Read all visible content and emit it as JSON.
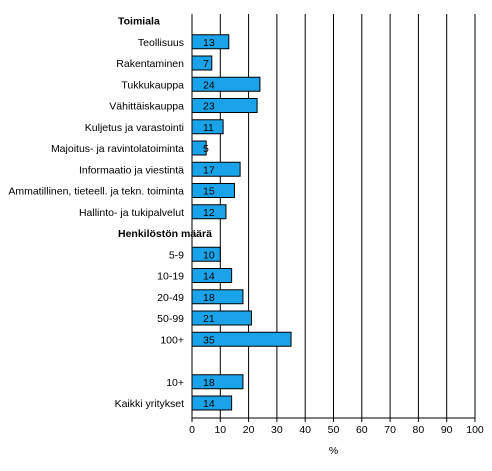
{
  "chart_data": {
    "type": "bar",
    "orientation": "horizontal",
    "xlabel": "%",
    "xlim": [
      0,
      100
    ],
    "xticks": [
      "0",
      "10",
      "20",
      "30",
      "40",
      "50",
      "60",
      "70",
      "80",
      "90",
      "100"
    ],
    "grid": "vertical lines",
    "bar_color": "#1aa3e8",
    "sections": [
      "Toimiala",
      "Henkilöstön määrä"
    ],
    "rows": [
      {
        "kind": "header",
        "label": "Toimiala"
      },
      {
        "kind": "bar",
        "label": "Teollisuus",
        "value": 13
      },
      {
        "kind": "bar",
        "label": "Rakentaminen",
        "value": 7
      },
      {
        "kind": "bar",
        "label": "Tukkukauppa",
        "value": 24
      },
      {
        "kind": "bar",
        "label": "Vähittäiskauppa",
        "value": 23
      },
      {
        "kind": "bar",
        "label": "Kuljetus ja varastointi",
        "value": 11
      },
      {
        "kind": "bar",
        "label": "Majoitus- ja ravintolatoiminta",
        "value": 5
      },
      {
        "kind": "bar",
        "label": "Informaatio ja viestintä",
        "value": 17
      },
      {
        "kind": "bar",
        "label": "Ammatillinen, tieteell. ja tekn. toiminta",
        "value": 15
      },
      {
        "kind": "bar",
        "label": "Hallinto- ja tukipalvelut",
        "value": 12
      },
      {
        "kind": "header",
        "label": "Henkilöstön määrä"
      },
      {
        "kind": "bar",
        "label": "5-9",
        "value": 10
      },
      {
        "kind": "bar",
        "label": "10-19",
        "value": 14
      },
      {
        "kind": "bar",
        "label": "20-49",
        "value": 18
      },
      {
        "kind": "bar",
        "label": "50-99",
        "value": 21
      },
      {
        "kind": "bar",
        "label": "100+",
        "value": 35
      },
      {
        "kind": "gap"
      },
      {
        "kind": "bar",
        "label": "10+",
        "value": 18
      },
      {
        "kind": "bar",
        "label": "Kaikki yritykset",
        "value": 14
      }
    ]
  }
}
